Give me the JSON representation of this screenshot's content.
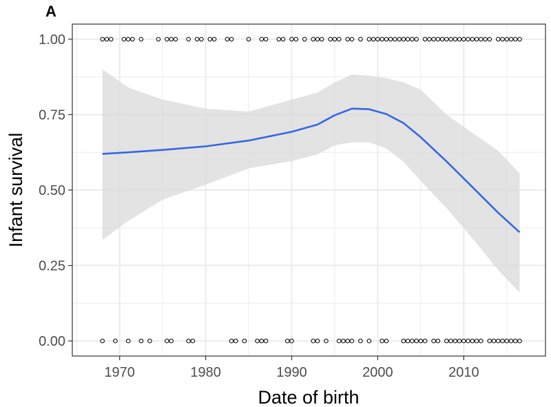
{
  "panel_label": "A",
  "chart_data": {
    "type": "scatter",
    "xlabel": "Date of birth",
    "ylabel": "Infant survival",
    "xlim": [
      1964.5,
      2019.5
    ],
    "ylim": [
      -0.05,
      1.05
    ],
    "x_ticks": [
      1970,
      1980,
      1990,
      2000,
      2010
    ],
    "x_tick_labels": [
      "1970",
      "1980",
      "1990",
      "2000",
      "2010"
    ],
    "y_ticks": [
      0,
      0.25,
      0.5,
      0.75,
      1.0
    ],
    "y_tick_labels": [
      "0.00",
      "0.25",
      "0.50",
      "0.75",
      "1.00"
    ],
    "grid": true,
    "colors": {
      "smooth": "#3366e6",
      "ribbon": "#d9d9d9",
      "points": "#000000",
      "grid": "#ebebeb"
    },
    "points_survived_x": [
      1968,
      1968.5,
      1969,
      1970.5,
      1971,
      1971.5,
      1972.5,
      1974.5,
      1975.5,
      1976,
      1976.5,
      1978,
      1979,
      1979.5,
      1980.5,
      1981,
      1982.5,
      1983,
      1985,
      1986.5,
      1987,
      1988.5,
      1989,
      1990,
      1990.5,
      1991.5,
      1992.5,
      1993,
      1993.5,
      1994.5,
      1995,
      1995.5,
      1996.5,
      1997,
      1998,
      1999,
      1999.5,
      2000,
      2000.5,
      2001,
      2001.5,
      2002,
      2002.5,
      2003,
      2003.5,
      2004,
      2004.5,
      2005.5,
      2006,
      2006.5,
      2007,
      2007.5,
      2008,
      2008.5,
      2009,
      2009.5,
      2010,
      2010.5,
      2011,
      2011.5,
      2012,
      2012.5,
      2013,
      2014,
      2014.5,
      2015,
      2015.5,
      2016,
      2016.5
    ],
    "points_died_x": [
      1968,
      1969.5,
      1971,
      1972.5,
      1973.5,
      1975.5,
      1976,
      1978,
      1978.5,
      1983,
      1983.5,
      1984.5,
      1986,
      1986.5,
      1987,
      1989.5,
      1990,
      1992.5,
      1993,
      1994,
      1995.5,
      1996,
      1996.5,
      1997,
      1998,
      1999,
      2000.5,
      2001,
      2003,
      2003.5,
      2004,
      2004.5,
      2005,
      2005.5,
      2006.5,
      2007,
      2008,
      2008.5,
      2009,
      2009.5,
      2010,
      2010.5,
      2011,
      2011.5,
      2012,
      2013,
      2013.5,
      2014,
      2014.5,
      2015,
      2015.5,
      2016,
      2016.5
    ],
    "smooth_x": [
      1968,
      1971,
      1975,
      1980,
      1985,
      1990,
      1993,
      1995,
      1997,
      1999,
      2001,
      2003,
      2005,
      2008,
      2011,
      2014,
      2016.5
    ],
    "smooth_y": [
      0.62,
      0.625,
      0.633,
      0.645,
      0.664,
      0.693,
      0.717,
      0.748,
      0.77,
      0.768,
      0.752,
      0.722,
      0.675,
      0.595,
      0.51,
      0.425,
      0.36
    ],
    "ci_upper": [
      0.9,
      0.84,
      0.8,
      0.77,
      0.76,
      0.8,
      0.823,
      0.857,
      0.883,
      0.879,
      0.871,
      0.857,
      0.833,
      0.75,
      0.69,
      0.63,
      0.555
    ],
    "ci_lower": [
      0.335,
      0.398,
      0.468,
      0.518,
      0.572,
      0.596,
      0.618,
      0.648,
      0.658,
      0.658,
      0.638,
      0.594,
      0.53,
      0.44,
      0.34,
      0.235,
      0.16
    ]
  }
}
